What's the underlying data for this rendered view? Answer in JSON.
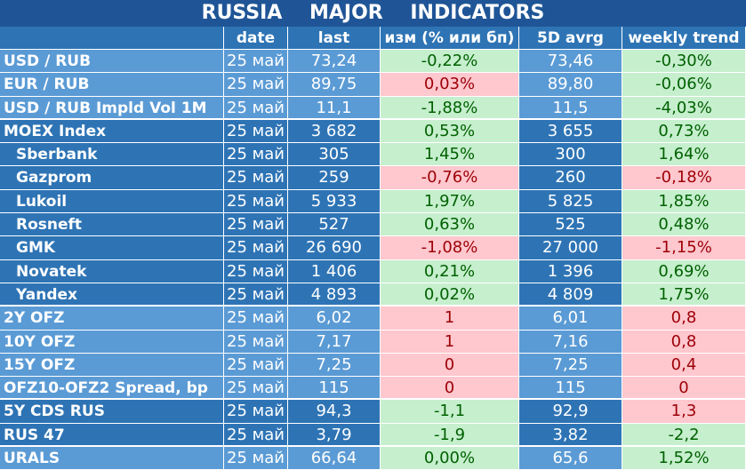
{
  "title": "RUSSIA    MAJOR    INDICATORS",
  "headers": [
    "",
    "date",
    "last",
    "изм (% или бп)",
    "5D avrg",
    "weekly trend"
  ],
  "rows": [
    {
      "name": "USD / RUB",
      "date": "25 май",
      "last": "73,24",
      "chg": "-0,22%",
      "chg_s": "pos",
      "avg": "73,46",
      "wk": "-0,30%",
      "wk_s": "pos",
      "band": "light",
      "sub": false,
      "sep": false
    },
    {
      "name": "EUR / RUB",
      "date": "25 май",
      "last": "89,75",
      "chg": "0,03%",
      "chg_s": "neg",
      "avg": "89,80",
      "wk": "-0,06%",
      "wk_s": "pos",
      "band": "light",
      "sub": false,
      "sep": false
    },
    {
      "name": "USD / RUB Impld Vol 1M",
      "date": "25 май",
      "last": "11,1",
      "chg": "-1,88%",
      "chg_s": "pos",
      "avg": "11,5",
      "wk": "-4,03%",
      "wk_s": "pos",
      "band": "light",
      "sub": false,
      "sep": true
    },
    {
      "name": "MOEX Index",
      "date": "25 май",
      "last": "3 682",
      "chg": "0,53%",
      "chg_s": "pos",
      "avg": "3 655",
      "wk": "0,73%",
      "wk_s": "pos",
      "band": "dark",
      "sub": false,
      "sep": false
    },
    {
      "name": "Sberbank",
      "date": "25 май",
      "last": "305",
      "chg": "1,45%",
      "chg_s": "pos",
      "avg": "300",
      "wk": "1,64%",
      "wk_s": "pos",
      "band": "dark",
      "sub": true,
      "sep": false
    },
    {
      "name": "Gazprom",
      "date": "25 май",
      "last": "259",
      "chg": "-0,76%",
      "chg_s": "neg",
      "avg": "260",
      "wk": "-0,18%",
      "wk_s": "neg",
      "band": "dark",
      "sub": true,
      "sep": false
    },
    {
      "name": "Lukoil",
      "date": "25 май",
      "last": "5 933",
      "chg": "1,97%",
      "chg_s": "pos",
      "avg": "5 825",
      "wk": "1,85%",
      "wk_s": "pos",
      "band": "dark",
      "sub": true,
      "sep": false
    },
    {
      "name": "Rosneft",
      "date": "25 май",
      "last": "527",
      "chg": "0,63%",
      "chg_s": "pos",
      "avg": "525",
      "wk": "0,48%",
      "wk_s": "pos",
      "band": "dark",
      "sub": true,
      "sep": false
    },
    {
      "name": "GMK",
      "date": "25 май",
      "last": "26 690",
      "chg": "-1,08%",
      "chg_s": "neg",
      "avg": "27 000",
      "wk": "-1,15%",
      "wk_s": "neg",
      "band": "dark",
      "sub": true,
      "sep": false
    },
    {
      "name": "Novatek",
      "date": "25 май",
      "last": "1 406",
      "chg": "0,21%",
      "chg_s": "pos",
      "avg": "1 396",
      "wk": "0,69%",
      "wk_s": "pos",
      "band": "dark",
      "sub": true,
      "sep": false
    },
    {
      "name": "Yandex",
      "date": "25 май",
      "last": "4 893",
      "chg": "0,02%",
      "chg_s": "pos",
      "avg": "4 809",
      "wk": "1,75%",
      "wk_s": "pos",
      "band": "dark",
      "sub": true,
      "sep": true
    },
    {
      "name": "2Y OFZ",
      "date": "25 май",
      "last": "6,02",
      "chg": "1",
      "chg_s": "neg",
      "avg": "6,01",
      "wk": "0,8",
      "wk_s": "neg",
      "band": "light",
      "sub": false,
      "sep": false
    },
    {
      "name": "10Y OFZ",
      "date": "25 май",
      "last": "7,17",
      "chg": "1",
      "chg_s": "neg",
      "avg": "7,16",
      "wk": "0,8",
      "wk_s": "neg",
      "band": "light",
      "sub": false,
      "sep": false
    },
    {
      "name": "15Y OFZ",
      "date": "25 май",
      "last": "7,25",
      "chg": "0",
      "chg_s": "neg",
      "avg": "7,25",
      "wk": "0,4",
      "wk_s": "neg",
      "band": "light",
      "sub": false,
      "sep": false
    },
    {
      "name": "OFZ10-OFZ2 Spread, bp",
      "date": "25 май",
      "last": "115",
      "chg": "0",
      "chg_s": "neg",
      "avg": "115",
      "wk": "0",
      "wk_s": "neg",
      "band": "light",
      "sub": false,
      "sep": true
    },
    {
      "name": "5Y CDS RUS",
      "date": "25 май",
      "last": "94,3",
      "chg": "-1,1",
      "chg_s": "pos",
      "avg": "92,9",
      "wk": "1,3",
      "wk_s": "neg",
      "band": "dark",
      "sub": false,
      "sep": false
    },
    {
      "name": "RUS 47",
      "date": "25 май",
      "last": "3,79",
      "chg": "-1,9",
      "chg_s": "pos",
      "avg": "3,82",
      "wk": "-2,2",
      "wk_s": "pos",
      "band": "dark",
      "sub": false,
      "sep": true
    },
    {
      "name": "URALS",
      "date": "25 май",
      "last": "66,64",
      "chg": "0,00%",
      "chg_s": "pos",
      "avg": "65,6",
      "wk": "1,52%",
      "wk_s": "pos",
      "band": "light",
      "sub": false,
      "sep": false
    }
  ]
}
